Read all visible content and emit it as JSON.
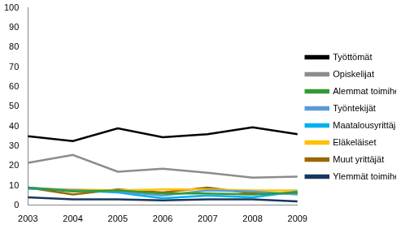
{
  "chart_data": {
    "type": "line",
    "categories": [
      "2003",
      "2004",
      "2005",
      "2006",
      "2007",
      "2008",
      "2009"
    ],
    "series": [
      {
        "name": "Työttömät",
        "color": "#000000",
        "values": [
          35,
          32.5,
          39,
          34.5,
          36,
          39.5,
          36
        ]
      },
      {
        "name": "Opiskelijat",
        "color": "#8c8c8c",
        "values": [
          21.5,
          25.5,
          17,
          18.5,
          16.5,
          14,
          14.5
        ]
      },
      {
        "name": "Alemmat toimihenkilöt",
        "color": "#339933",
        "values": [
          9,
          7,
          7.5,
          6,
          6,
          5.5,
          6.5
        ]
      },
      {
        "name": "Työntekijät",
        "color": "#5b9bd5",
        "values": [
          9,
          7.5,
          7,
          5,
          7.5,
          7,
          5.5
        ]
      },
      {
        "name": "Maatalousyrittäjät",
        "color": "#00b0f0",
        "values": [
          8.5,
          7.5,
          6.5,
          3.5,
          5,
          4,
          7
        ]
      },
      {
        "name": "Eläkeläiset",
        "color": "#ffc000",
        "values": [
          8.5,
          8,
          7.5,
          8,
          8,
          7.5,
          7.5
        ]
      },
      {
        "name": "Muut yrittäjät",
        "color": "#996600",
        "values": [
          9,
          5.5,
          8,
          6.5,
          9,
          6,
          6
        ]
      },
      {
        "name": "Ylemmät toimihenkilöt",
        "color": "#17375e",
        "values": [
          4,
          3,
          3,
          2.5,
          3,
          3,
          2
        ]
      }
    ],
    "ylim": [
      0,
      100
    ],
    "yticks": [
      0,
      10,
      20,
      30,
      40,
      50,
      60,
      70,
      80,
      90,
      100
    ],
    "grid": false,
    "legend": "right"
  }
}
